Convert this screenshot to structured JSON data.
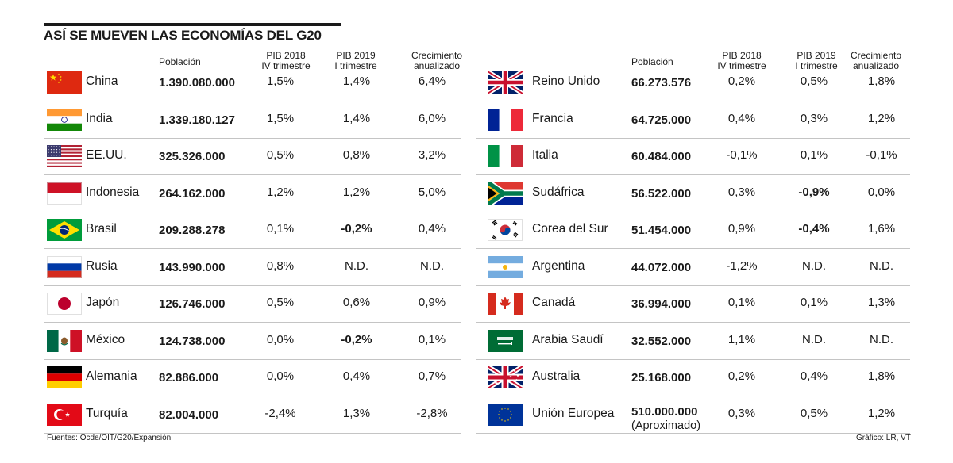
{
  "header": {
    "title": "ASÍ SE MUEVEN LAS ECONOMÍAS DEL G20",
    "source": "Fuentes: Ocde/OIT/G20/Expansión",
    "credit": "Gráfico: LR, VT"
  },
  "columns": {
    "poblacion": "Población",
    "pib2018": "PIB 2018\nIV trimestre",
    "pib2019": "PIB 2019\nI trimestre",
    "crecimiento": "Crecimiento\nanualizado"
  },
  "chart_data": {
    "type": "table",
    "title": "ASÍ SE MUEVEN LAS ECONOMÍAS DEL G20",
    "columns": [
      "Población",
      "PIB 2018 IV trimestre",
      "PIB 2019 I trimestre",
      "Crecimiento anualizado"
    ],
    "left": [
      {
        "country": "China",
        "flag": "china",
        "poblacion": "1.390.080.000",
        "pib2018": "1,5%",
        "pib2019": "1,4%",
        "crecimiento": "6,4%"
      },
      {
        "country": "India",
        "flag": "india",
        "poblacion": "1.339.180.127",
        "pib2018": "1,5%",
        "pib2019": "1,4%",
        "crecimiento": "6,0%"
      },
      {
        "country": "EE.UU.",
        "flag": "usa",
        "poblacion": "325.326.000",
        "pib2018": "0,5%",
        "pib2019": "0,8%",
        "crecimiento": "3,2%"
      },
      {
        "country": "Indonesia",
        "flag": "indonesia",
        "poblacion": "264.162.000",
        "pib2018": "1,2%",
        "pib2019": "1,2%",
        "crecimiento": "5,0%"
      },
      {
        "country": "Brasil",
        "flag": "brazil",
        "poblacion": "209.288.278",
        "pib2018": "0,1%",
        "pib2019": "-0,2%",
        "crecimiento": "0,4%"
      },
      {
        "country": "Rusia",
        "flag": "russia",
        "poblacion": "143.990.000",
        "pib2018": "0,8%",
        "pib2019": "N.D.",
        "crecimiento": "N.D."
      },
      {
        "country": "Japón",
        "flag": "japan",
        "poblacion": "126.746.000",
        "pib2018": "0,5%",
        "pib2019": "0,6%",
        "crecimiento": "0,9%"
      },
      {
        "country": "México",
        "flag": "mexico",
        "poblacion": "124.738.000",
        "pib2018": "0,0%",
        "pib2019": "-0,2%",
        "crecimiento": "0,1%"
      },
      {
        "country": "Alemania",
        "flag": "germany",
        "poblacion": "82.886.000",
        "pib2018": "0,0%",
        "pib2019": "0,4%",
        "crecimiento": "0,7%"
      },
      {
        "country": "Turquía",
        "flag": "turkey",
        "poblacion": "82.004.000",
        "pib2018": "-2,4%",
        "pib2019": "1,3%",
        "crecimiento": "-2,8%"
      }
    ],
    "right": [
      {
        "country": "Reino Unido",
        "flag": "uk",
        "poblacion": "66.273.576",
        "pib2018": "0,2%",
        "pib2019": "0,5%",
        "crecimiento": "1,8%"
      },
      {
        "country": "Francia",
        "flag": "france",
        "poblacion": "64.725.000",
        "pib2018": "0,4%",
        "pib2019": "0,3%",
        "crecimiento": "1,2%"
      },
      {
        "country": "Italia",
        "flag": "italy",
        "poblacion": "60.484.000",
        "pib2018": "-0,1%",
        "pib2019": "0,1%",
        "crecimiento": "-0,1%"
      },
      {
        "country": "Sudáfrica",
        "flag": "southafrica",
        "poblacion": "56.522.000",
        "pib2018": "0,3%",
        "pib2019": "-0,9%",
        "crecimiento": "0,0%"
      },
      {
        "country": "Corea del Sur",
        "flag": "korea",
        "poblacion": "51.454.000",
        "pib2018": "0,9%",
        "pib2019": "-0,4%",
        "crecimiento": "1,6%"
      },
      {
        "country": "Argentina",
        "flag": "argentina",
        "poblacion": "44.072.000",
        "pib2018": "-1,2%",
        "pib2019": "N.D.",
        "crecimiento": "N.D."
      },
      {
        "country": "Canadá",
        "flag": "canada",
        "poblacion": "36.994.000",
        "pib2018": "0,1%",
        "pib2019": "0,1%",
        "crecimiento": "1,3%"
      },
      {
        "country": "Arabia Saudí",
        "flag": "saudi",
        "poblacion": "32.552.000",
        "pib2018": "1,1%",
        "pib2019": "N.D.",
        "crecimiento": "N.D."
      },
      {
        "country": "Australia",
        "flag": "australia",
        "poblacion": "25.168.000",
        "pib2018": "0,2%",
        "pib2019": "0,4%",
        "crecimiento": "1,8%"
      },
      {
        "country": "Unión Europea",
        "flag": "eu",
        "poblacion": "510.000.000",
        "poblacion_note": "(Aproximado)",
        "pib2018": "0,3%",
        "pib2019": "0,5%",
        "crecimiento": "1,2%"
      }
    ]
  }
}
